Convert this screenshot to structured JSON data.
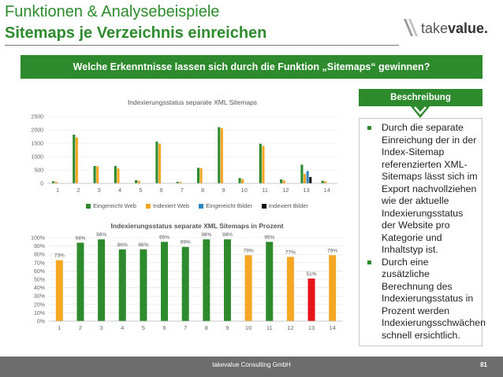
{
  "header": {
    "title_line1": "Funktionen & Analysebeispiele",
    "title_line2": "Sitemaps je Verzeichnis einreichen",
    "logo_text_a": "take",
    "logo_text_b": "value."
  },
  "banner": {
    "text": "Welche Erkenntnisse lassen sich durch die Funktion „Sitemaps“ gewinnen?"
  },
  "description": {
    "label": "Beschreibung",
    "bullets": [
      "Durch die separate Einreichung der in der Index-Sitemap referenzierten XML-Sitemaps lässt sich im Export nachvollziehen wie der aktuelle Indexierungsstatus der Website pro Kategorie und Inhaltstyp ist.",
      "Durch eine zusätzliche Berechnung des Indexierungsstatus in Prozent werden Indexierungsschwächen schnell ersichtlich."
    ]
  },
  "colors": {
    "green": "#2d8a2d",
    "orange": "#f5a623",
    "blue": "#2e86c1",
    "black": "#111111",
    "red": "#e8141c",
    "footer": "#6d6d6d"
  },
  "footer": {
    "company": "takevalue Consulting GmbH",
    "page": "81"
  },
  "chart_data": [
    {
      "type": "bar",
      "title": "Indexierungsstatus separate XML Sitemaps",
      "categories": [
        "1",
        "2",
        "3",
        "4",
        "5",
        "6",
        "7",
        "8",
        "9",
        "10",
        "11",
        "12",
        "13",
        "14"
      ],
      "ylim": [
        0,
        2500
      ],
      "yticks": [
        "0",
        "500",
        "1000",
        "1500",
        "2000",
        "2500"
      ],
      "grid": true,
      "legend": "bottom",
      "series": [
        {
          "name": "Eingereicht Web",
          "color": "#2d8a2d",
          "values": [
            80,
            1820,
            650,
            650,
            120,
            1560,
            60,
            580,
            2100,
            200,
            1480,
            150,
            700,
            100
          ]
        },
        {
          "name": "Indexiert Web",
          "color": "#f5a623",
          "values": [
            60,
            1720,
            640,
            560,
            100,
            1480,
            50,
            570,
            2060,
            160,
            1400,
            115,
            350,
            80
          ]
        },
        {
          "name": "Eingereicht Bilder",
          "color": "#2e86c1",
          "values": [
            0,
            0,
            0,
            0,
            0,
            0,
            0,
            0,
            0,
            0,
            0,
            0,
            460,
            0
          ]
        },
        {
          "name": "Indexiert Bilder",
          "color": "#111111",
          "values": [
            0,
            0,
            0,
            0,
            0,
            0,
            0,
            0,
            0,
            0,
            0,
            0,
            240,
            0
          ]
        }
      ]
    },
    {
      "type": "bar",
      "title": "Indexierungsstatus separate XML Sitemaps in Prozent",
      "categories": [
        "1",
        "2",
        "3",
        "4",
        "5",
        "6",
        "7",
        "8",
        "9",
        "10",
        "11",
        "12",
        "13",
        "14"
      ],
      "ylim": [
        0,
        100
      ],
      "yticks": [
        "0%",
        "10%",
        "20%",
        "30%",
        "40%",
        "50%",
        "60%",
        "70%",
        "80%",
        "90%",
        "100%"
      ],
      "grid": true,
      "values": [
        73,
        94,
        98,
        86,
        86,
        95,
        89,
        98,
        98,
        79,
        95,
        77,
        51,
        79
      ],
      "labels": [
        "73%",
        "94%",
        "98%",
        "86%",
        "86%",
        "95%",
        "89%",
        "98%",
        "98%",
        "79%",
        "95%",
        "77%",
        "51%",
        "79%"
      ],
      "bar_colors": [
        "#f5a623",
        "#2d8a2d",
        "#2d8a2d",
        "#2d8a2d",
        "#2d8a2d",
        "#2d8a2d",
        "#2d8a2d",
        "#2d8a2d",
        "#2d8a2d",
        "#f5a623",
        "#2d8a2d",
        "#f5a623",
        "#e8141c",
        "#f5a623"
      ]
    }
  ]
}
